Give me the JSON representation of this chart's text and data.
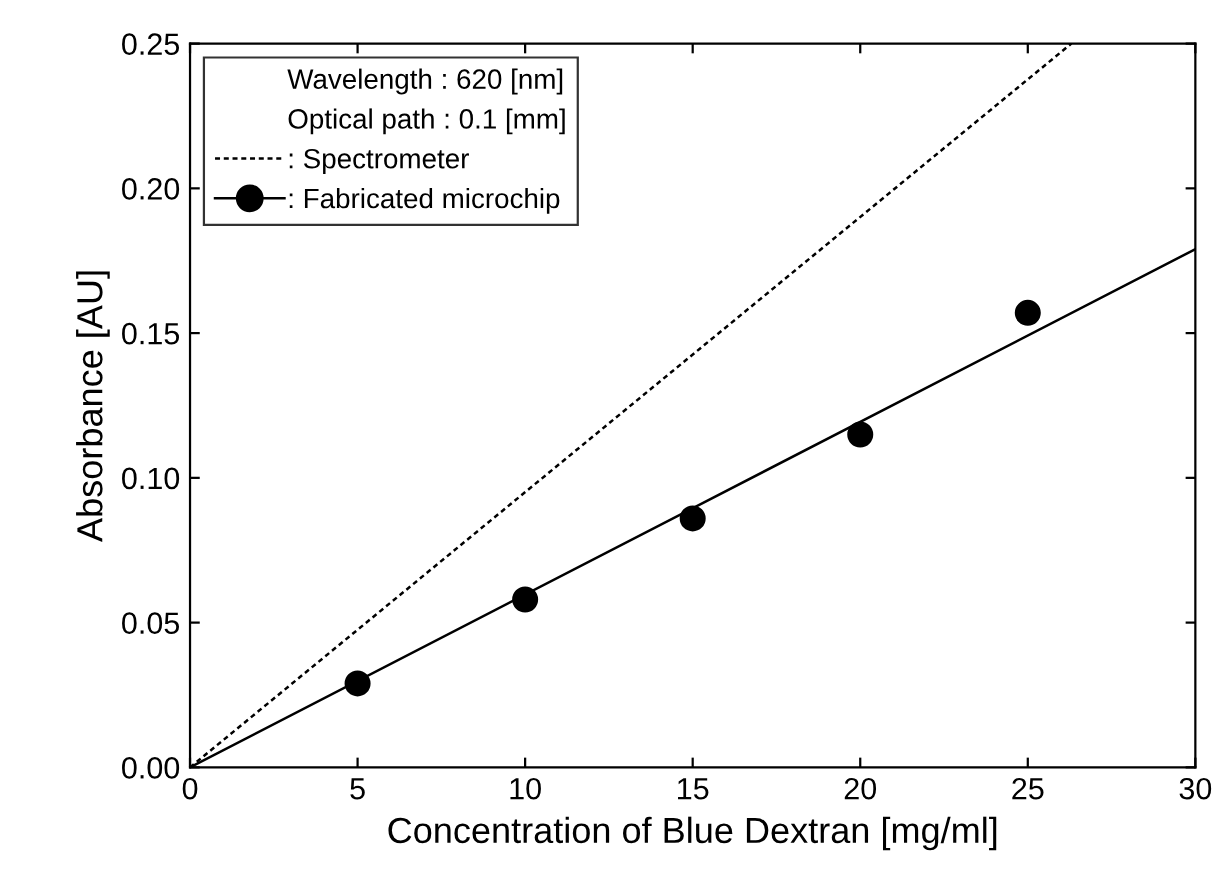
{
  "chart_data": {
    "type": "scatter",
    "xlabel": "Concentration of Blue Dextran [mg/ml]",
    "ylabel": "Absorbance [AU]",
    "annotations": [
      "Wavelength : 620 [nm]",
      "Optical path : 0.1 [mm]"
    ],
    "series": [
      {
        "name": ": Spectrometer",
        "type": "line",
        "color": "#000000",
        "line_style": "dotted",
        "marker": "none",
        "x": [
          0,
          26.3
        ],
        "values": [
          0,
          0.25
        ]
      },
      {
        "name": ": Fabricated microchip",
        "color": "#000000",
        "marker": "circle",
        "x": [
          5,
          10,
          15,
          20,
          25
        ],
        "values": [
          0.029,
          0.058,
          0.086,
          0.115,
          0.157
        ]
      },
      {
        "type": "line",
        "color": "#000000",
        "line_style": "solid",
        "marker": "none",
        "x": [
          0,
          30
        ],
        "values": [
          0,
          0.179
        ]
      }
    ],
    "xlim": [
      0,
      30
    ],
    "ylim": [
      0,
      0.25
    ],
    "xticks": [
      0,
      5,
      10,
      15,
      20,
      25,
      30
    ],
    "yticks": [
      {
        "value": 0,
        "label": "0.00"
      },
      {
        "value": 0.05,
        "label": "0.05"
      },
      {
        "value": 0.1,
        "label": "0.10"
      },
      {
        "value": 0.15,
        "label": "0.15"
      },
      {
        "value": 0.2,
        "label": "0.20"
      },
      {
        "value": 0.25,
        "label": "0.25"
      }
    ],
    "grid": false,
    "legend": "top left"
  }
}
